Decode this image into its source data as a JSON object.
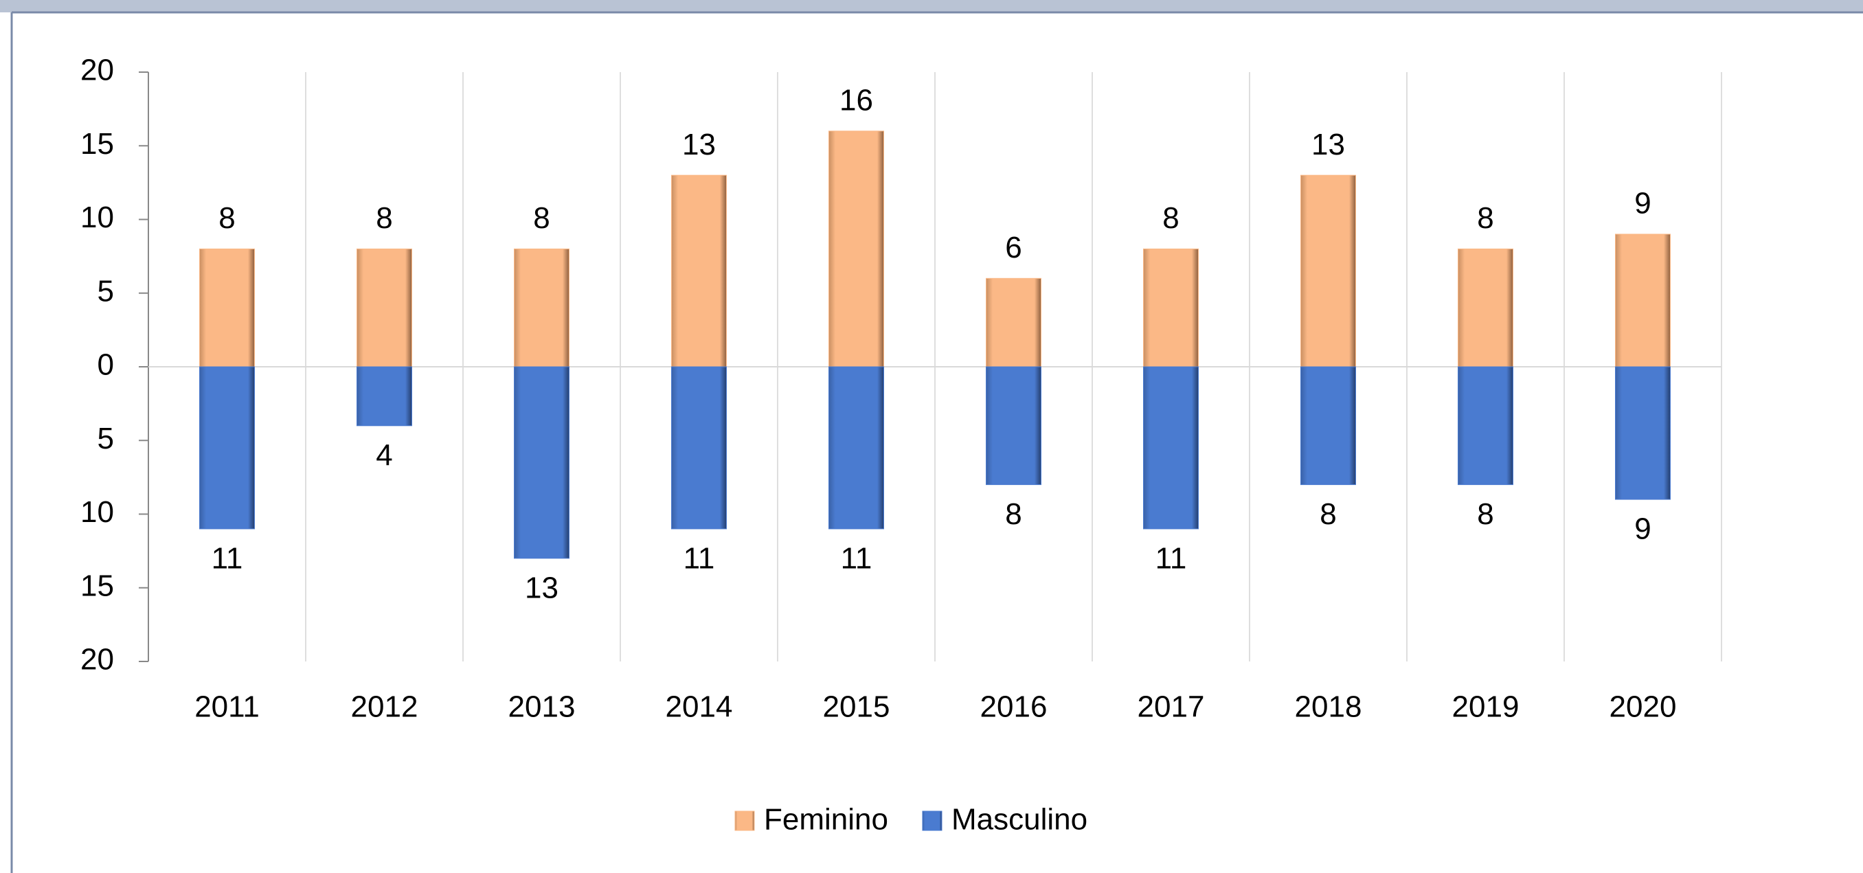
{
  "chart_data": {
    "type": "bar",
    "categories": [
      "2011",
      "2012",
      "2013",
      "2014",
      "2015",
      "2016",
      "2017",
      "2018",
      "2019",
      "2020"
    ],
    "series": [
      {
        "name": "Feminino",
        "color": "#fbb886",
        "values": [
          8,
          8,
          8,
          13,
          16,
          6,
          8,
          13,
          8,
          9
        ]
      },
      {
        "name": "Masculino",
        "color": "#4a7bd0",
        "values": [
          -11,
          -4,
          -13,
          -11,
          -11,
          -8,
          -11,
          -8,
          -8,
          -9
        ],
        "value_labels": [
          "11",
          "4",
          "13",
          "11",
          "11",
          "8",
          "11",
          "8",
          "8",
          "9"
        ]
      }
    ],
    "ylim": [
      -20,
      20
    ],
    "yticks": [
      {
        "value": -20,
        "label": "20"
      },
      {
        "value": -15,
        "label": "15"
      },
      {
        "value": -10,
        "label": "10"
      },
      {
        "value": -5,
        "label": "5"
      },
      0,
      5,
      10,
      15,
      20
    ],
    "legend": "bottom"
  }
}
